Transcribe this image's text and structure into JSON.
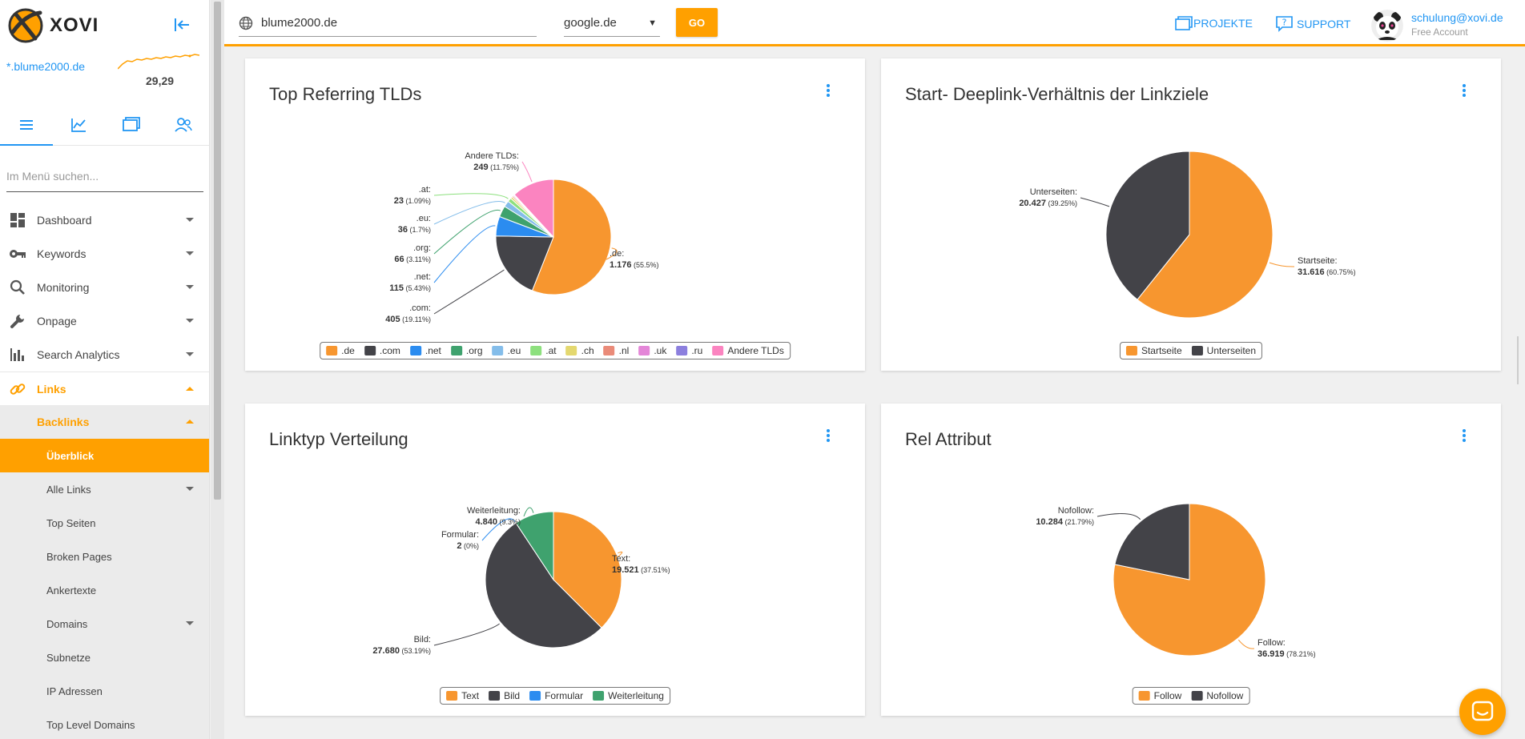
{
  "sidebar": {
    "brand": "XOVI",
    "domain": "*.blume2000.de",
    "score": "29,29",
    "search_placeholder": "Im Menü suchen...",
    "menu": [
      {
        "label": "Dashboard",
        "icon": "dashboard-icon"
      },
      {
        "label": "Keywords",
        "icon": "key-icon"
      },
      {
        "label": "Monitoring",
        "icon": "magnifier-icon"
      },
      {
        "label": "Onpage",
        "icon": "wrench-icon"
      },
      {
        "label": "Search Analytics",
        "icon": "bar-chart-icon"
      }
    ],
    "links_label": "Links",
    "backlinks_label": "Backlinks",
    "subitems": [
      "Überblick",
      "Alle Links",
      "Top Seiten",
      "Broken Pages",
      "Ankertexte",
      "Domains",
      "Subnetze",
      "IP Adressen",
      "Top Level Domains"
    ]
  },
  "header": {
    "search_value": "blume2000.de",
    "engine": "google.de",
    "go_label": "GO",
    "projects_label": "PROJEKTE",
    "support_label": "SUPPORT",
    "user_email": "schulung@xovi.de",
    "user_plan": "Free Account"
  },
  "colors": {
    "accent": "#ffa000",
    "link": "#2196f3",
    "orange": "#f7962f",
    "dark": "#434348",
    "blue": "#2b8cf0",
    "green": "#3fa26e",
    "lightblue": "#84bdea",
    "lightgreen": "#8de07e",
    "yellow": "#e4d86f",
    "salmon": "#ea8b79",
    "pink": "#e486d8",
    "purple": "#8c7fde",
    "hotpink": "#fb84c0"
  },
  "chart_data": [
    {
      "type": "pie",
      "title": "Top Referring TLDs",
      "slices": [
        {
          "name": ".de",
          "value": 1176,
          "label": ".de:",
          "value_text": "1.176",
          "pct": "(55.5%)",
          "color": "#f7962f"
        },
        {
          "name": ".com",
          "value": 405,
          "label": ".com:",
          "value_text": "405",
          "pct": "(19.11%)",
          "color": "#434348"
        },
        {
          "name": ".net",
          "value": 115,
          "label": ".net:",
          "value_text": "115",
          "pct": "(5.43%)",
          "color": "#2b8cf0"
        },
        {
          "name": ".org",
          "value": 66,
          "label": ".org:",
          "value_text": "66",
          "pct": "(3.11%)",
          "color": "#3fa26e"
        },
        {
          "name": ".eu",
          "value": 36,
          "label": ".eu:",
          "value_text": "36",
          "pct": "(1.7%)",
          "color": "#84bdea"
        },
        {
          "name": ".at",
          "value": 23,
          "label": ".at:",
          "value_text": "23",
          "pct": "(1.09%)",
          "color": "#8de07e"
        },
        {
          "name": ".ch",
          "value": 12,
          "color": "#e4d86f"
        },
        {
          "name": ".nl",
          "value": 8,
          "color": "#ea8b79"
        },
        {
          "name": ".uk",
          "value": 6,
          "color": "#e486d8"
        },
        {
          "name": ".ru",
          "value": 4,
          "color": "#8c7fde"
        },
        {
          "name": "Andere TLDs",
          "value": 249,
          "label": "Andere TLDs:",
          "value_text": "249",
          "pct": "(11.75%)",
          "color": "#fb84c0"
        }
      ]
    },
    {
      "type": "pie",
      "title": "Start- Deeplink-Verhältnis der Linkziele",
      "slices": [
        {
          "name": "Startseite",
          "value": 31616,
          "label": "Startseite:",
          "value_text": "31.616",
          "pct": "(60.75%)",
          "color": "#f7962f"
        },
        {
          "name": "Unterseiten",
          "value": 20427,
          "label": "Unterseiten:",
          "value_text": "20.427",
          "pct": "(39.25%)",
          "color": "#434348"
        }
      ]
    },
    {
      "type": "pie",
      "title": "Linktyp Verteilung",
      "slices": [
        {
          "name": "Text",
          "value": 19521,
          "label": "Text:",
          "value_text": "19.521",
          "pct": "(37.51%)",
          "color": "#f7962f"
        },
        {
          "name": "Bild",
          "value": 27680,
          "label": "Bild:",
          "value_text": "27.680",
          "pct": "(53.19%)",
          "color": "#434348"
        },
        {
          "name": "Formular",
          "value": 2,
          "label": "Formular:",
          "value_text": "2",
          "pct": "(0%)",
          "color": "#2b8cf0"
        },
        {
          "name": "Weiterleitung",
          "value": 4840,
          "label": "Weiterleitung:",
          "value_text": "4.840",
          "pct": "(9.3%)",
          "color": "#3fa26e"
        }
      ]
    },
    {
      "type": "pie",
      "title": "Rel Attribut",
      "slices": [
        {
          "name": "Follow",
          "value": 36919,
          "label": "Follow:",
          "value_text": "36.919",
          "pct": "(78.21%)",
          "color": "#f7962f"
        },
        {
          "name": "Nofollow",
          "value": 10284,
          "label": "Nofollow:",
          "value_text": "10.284",
          "pct": "(21.79%)",
          "color": "#434348"
        }
      ]
    }
  ]
}
